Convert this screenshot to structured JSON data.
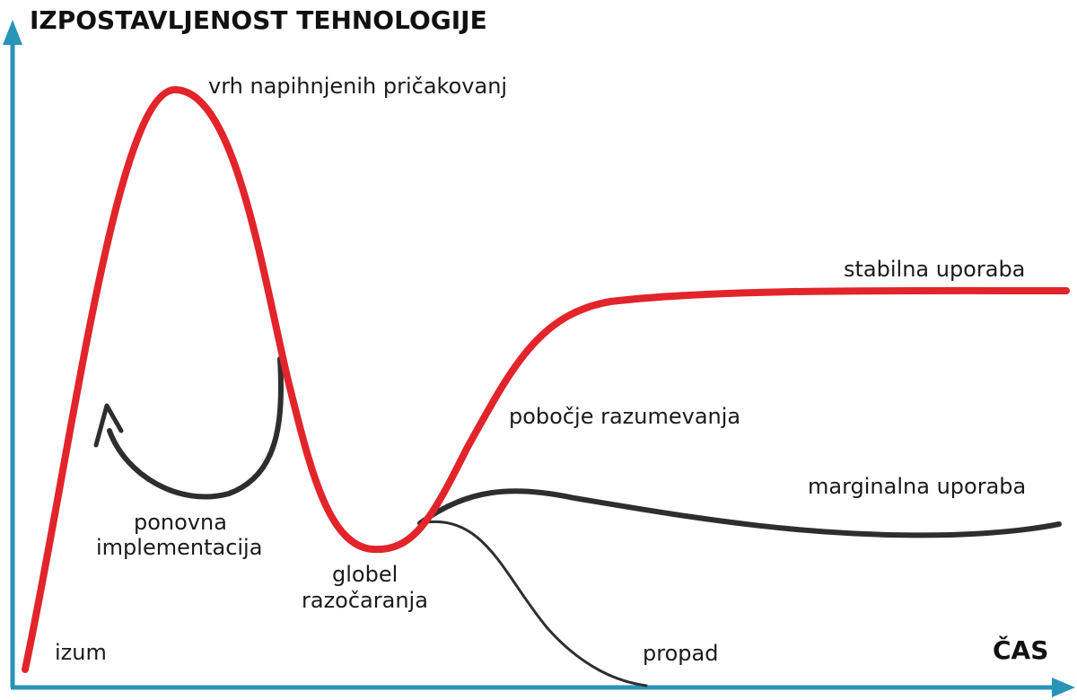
{
  "diagram": {
    "y_axis_title": "IZPOSTAVLJENOST TEHNOLOGIJE",
    "x_axis_title": "ČAS",
    "labels": {
      "peak": "vrh napihnjenih pričakovanj",
      "plateau": "stabilna uporaba",
      "slope": "pobočje razumevanja",
      "marginal": "marginalna uporaba",
      "reimplementation_line1": "ponovna",
      "reimplementation_line2": "implementacija",
      "trough_line1": "globel",
      "trough_line2": "razočaranja",
      "trigger": "izum",
      "decline": "propad"
    },
    "colors": {
      "main_curve": "#e2242b",
      "branch_curves": "#2e2e2e",
      "axes": "#2a93b8"
    }
  }
}
